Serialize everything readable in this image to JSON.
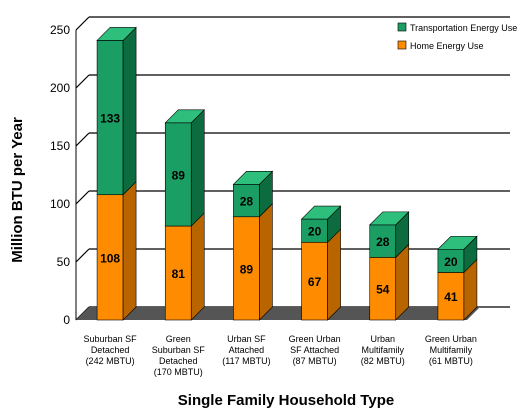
{
  "chart_data": {
    "type": "bar",
    "stacked": true,
    "three_d": true,
    "title": "",
    "xlabel": "Single Family Household Type",
    "ylabel": "Million BTU per Year",
    "ylim": [
      0,
      250
    ],
    "yticks": [
      0,
      50,
      100,
      150,
      200,
      250
    ],
    "grid": true,
    "legend_position": "top-right",
    "categories": [
      [
        "Suburban SF",
        "Detached",
        "(242 MBTU)"
      ],
      [
        "Green",
        "Suburban SF",
        "Detached",
        "(170 MBTU)"
      ],
      [
        "Urban SF",
        "Attached",
        "(117 MBTU)"
      ],
      [
        "Green Urban",
        "SF Attached",
        "(87 MBTU)"
      ],
      [
        "Urban",
        "Multifamily",
        "(82 MBTU)"
      ],
      [
        "Green Urban",
        "Multifamily",
        "(61 MBTU)"
      ]
    ],
    "series": [
      {
        "name": "Home Energy Use",
        "values": [
          108,
          81,
          89,
          67,
          54,
          41
        ],
        "labels": [
          "108",
          "81",
          "89",
          "67",
          "54",
          "41"
        ],
        "color": "#ff8c00",
        "side_color": "#b86500",
        "top_color": "#ffaa44"
      },
      {
        "name": "Transportation Energy Use",
        "values": [
          133,
          89,
          28,
          20,
          28,
          20
        ],
        "labels": [
          "133",
          "89",
          "28",
          "20",
          "28",
          "20"
        ],
        "color": "#1a9e63",
        "side_color": "#0d6b40",
        "top_color": "#2fbf7c"
      }
    ],
    "legend_order": [
      1,
      0
    ],
    "floor_color": "#555555"
  }
}
